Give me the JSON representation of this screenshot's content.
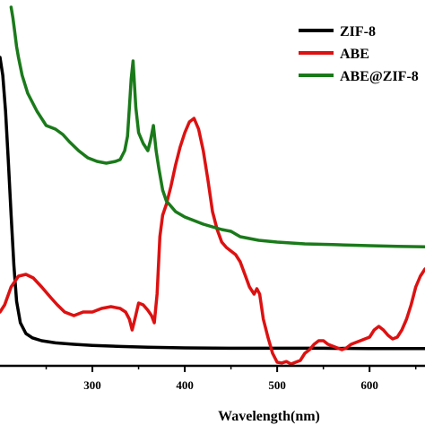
{
  "chart_data": {
    "type": "line",
    "title": "",
    "xlabel": "Wavelength(nm)",
    "ylabel": "",
    "xlim": [
      200,
      660
    ],
    "ylim": [
      0,
      1
    ],
    "xticks": [
      300,
      400,
      500,
      600
    ],
    "xtick_labels": [
      "300",
      "400",
      "500",
      "600"
    ],
    "grid": false,
    "legend": "top-right",
    "series": [
      {
        "name": "ZIF-8",
        "color": "#000000",
        "x": [
          200,
          203,
          206,
          209,
          212,
          215,
          218,
          222,
          228,
          235,
          245,
          260,
          280,
          300,
          330,
          360,
          400,
          450,
          500,
          550,
          600,
          660
        ],
        "y": [
          0.86,
          0.81,
          0.71,
          0.57,
          0.42,
          0.28,
          0.18,
          0.12,
          0.09,
          0.078,
          0.07,
          0.064,
          0.06,
          0.057,
          0.054,
          0.052,
          0.05,
          0.049,
          0.049,
          0.049,
          0.048,
          0.048
        ]
      },
      {
        "name": "ABE",
        "color": "#dd1111",
        "x": [
          200,
          205,
          212,
          220,
          228,
          236,
          245,
          255,
          262,
          270,
          280,
          290,
          300,
          310,
          320,
          330,
          336,
          340,
          343,
          346,
          350,
          355,
          360,
          364,
          367,
          370,
          373,
          376,
          380,
          385,
          390,
          395,
          400,
          405,
          410,
          415,
          420,
          425,
          430,
          435,
          440,
          445,
          450,
          455,
          460,
          465,
          470,
          475,
          478,
          481,
          485,
          490,
          495,
          500,
          505,
          510,
          515,
          520,
          525,
          530,
          535,
          540,
          545,
          550,
          555,
          560,
          565,
          570,
          575,
          580,
          585,
          590,
          595,
          600,
          605,
          610,
          615,
          620,
          625,
          630,
          635,
          640,
          645,
          650,
          655,
          660
        ],
        "y": [
          0.15,
          0.17,
          0.22,
          0.25,
          0.255,
          0.245,
          0.22,
          0.19,
          0.17,
          0.15,
          0.14,
          0.15,
          0.15,
          0.16,
          0.165,
          0.16,
          0.15,
          0.13,
          0.1,
          0.13,
          0.175,
          0.17,
          0.155,
          0.14,
          0.12,
          0.2,
          0.36,
          0.42,
          0.45,
          0.5,
          0.56,
          0.61,
          0.65,
          0.68,
          0.69,
          0.66,
          0.6,
          0.52,
          0.43,
          0.38,
          0.345,
          0.33,
          0.32,
          0.31,
          0.29,
          0.255,
          0.22,
          0.2,
          0.215,
          0.2,
          0.13,
          0.08,
          0.035,
          0.01,
          0.008,
          0.012,
          0.005,
          0.01,
          0.015,
          0.035,
          0.045,
          0.06,
          0.07,
          0.07,
          0.06,
          0.055,
          0.05,
          0.045,
          0.05,
          0.06,
          0.065,
          0.07,
          0.075,
          0.08,
          0.1,
          0.11,
          0.1,
          0.085,
          0.075,
          0.08,
          0.1,
          0.13,
          0.17,
          0.22,
          0.25,
          0.27
        ]
      },
      {
        "name": "ABE@ZIF-8",
        "color": "#1a7a1a",
        "x": [
          212,
          214,
          216,
          218,
          220,
          224,
          230,
          240,
          250,
          260,
          268,
          275,
          285,
          295,
          305,
          315,
          325,
          330,
          335,
          338,
          340,
          342,
          344,
          347,
          350,
          355,
          360,
          363,
          366,
          369,
          372,
          376,
          380,
          390,
          400,
          420,
          440,
          450,
          460,
          480,
          500,
          530,
          560,
          600,
          630,
          660
        ],
        "y": [
          1.0,
          0.97,
          0.93,
          0.89,
          0.86,
          0.81,
          0.76,
          0.71,
          0.67,
          0.66,
          0.645,
          0.625,
          0.6,
          0.58,
          0.57,
          0.565,
          0.57,
          0.575,
          0.6,
          0.64,
          0.72,
          0.8,
          0.85,
          0.72,
          0.65,
          0.62,
          0.6,
          0.63,
          0.67,
          0.6,
          0.55,
          0.49,
          0.46,
          0.43,
          0.415,
          0.395,
          0.38,
          0.375,
          0.36,
          0.35,
          0.345,
          0.34,
          0.338,
          0.335,
          0.333,
          0.332
        ]
      }
    ]
  }
}
